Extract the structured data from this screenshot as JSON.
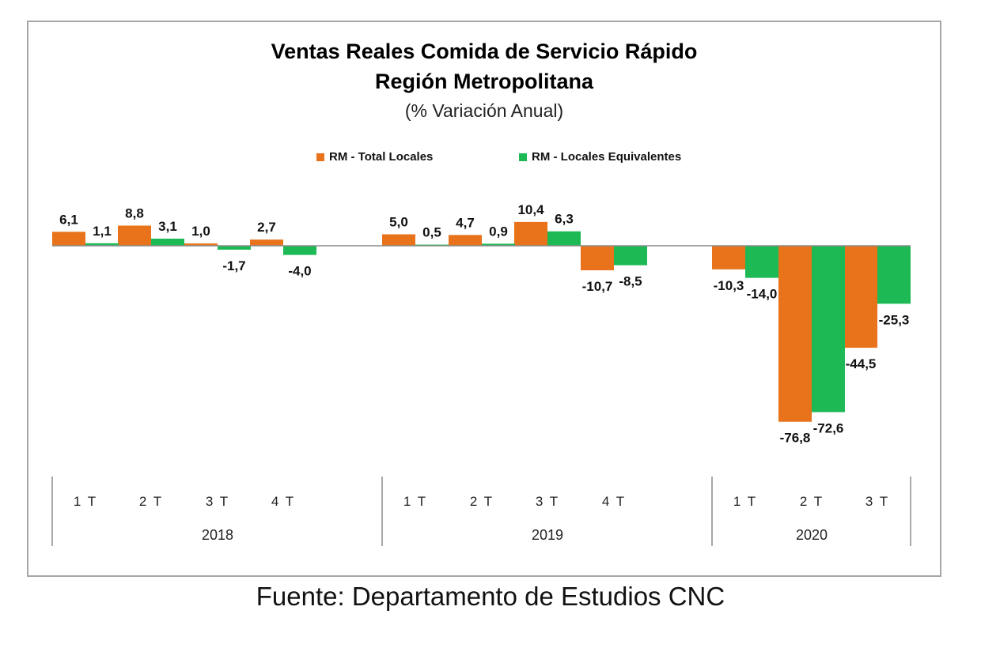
{
  "chart_data": {
    "type": "bar",
    "title": "Ventas Reales Comida de Servicio Rápido",
    "subtitle_line": "Región Metropolitana",
    "subtitle": "(% Variación Anual)",
    "categories": [
      "1 T",
      "2 T",
      "3 T",
      "4 T",
      "1 T",
      "2 T",
      "3 T",
      "4 T",
      "1 T",
      "2 T",
      "3 T"
    ],
    "groups": [
      {
        "label": "2018",
        "count": 4
      },
      {
        "label": "2019",
        "count": 4
      },
      {
        "label": "2020",
        "count": 3
      }
    ],
    "series": [
      {
        "name": "RM - Total Locales",
        "color": "#E8731A",
        "values": [
          6.1,
          8.8,
          1.0,
          2.7,
          5.0,
          4.7,
          10.4,
          -10.7,
          -10.3,
          -76.8,
          -44.5
        ],
        "labels": [
          "6,1",
          "8,8",
          "1,0",
          "2,7",
          "5,0",
          "4,7",
          "10,4",
          "-10,7",
          "-10,3",
          "-76,8",
          "-44,5"
        ]
      },
      {
        "name": "RM - Locales Equivalentes",
        "color": "#1DB954",
        "values": [
          1.1,
          3.1,
          -1.7,
          -4.0,
          0.5,
          0.9,
          6.3,
          -8.5,
          -14.0,
          -72.6,
          -25.3
        ],
        "labels": [
          "1,1",
          "3,1",
          "-1,7",
          "-4,0",
          "0,5",
          "0,9",
          "6,3",
          "-8,5",
          "-14,0",
          "-72,6",
          "-25,3"
        ]
      }
    ],
    "legend_position": "top-center",
    "grid": false
  },
  "source_text": "Fuente: Departamento de Estudios CNC"
}
